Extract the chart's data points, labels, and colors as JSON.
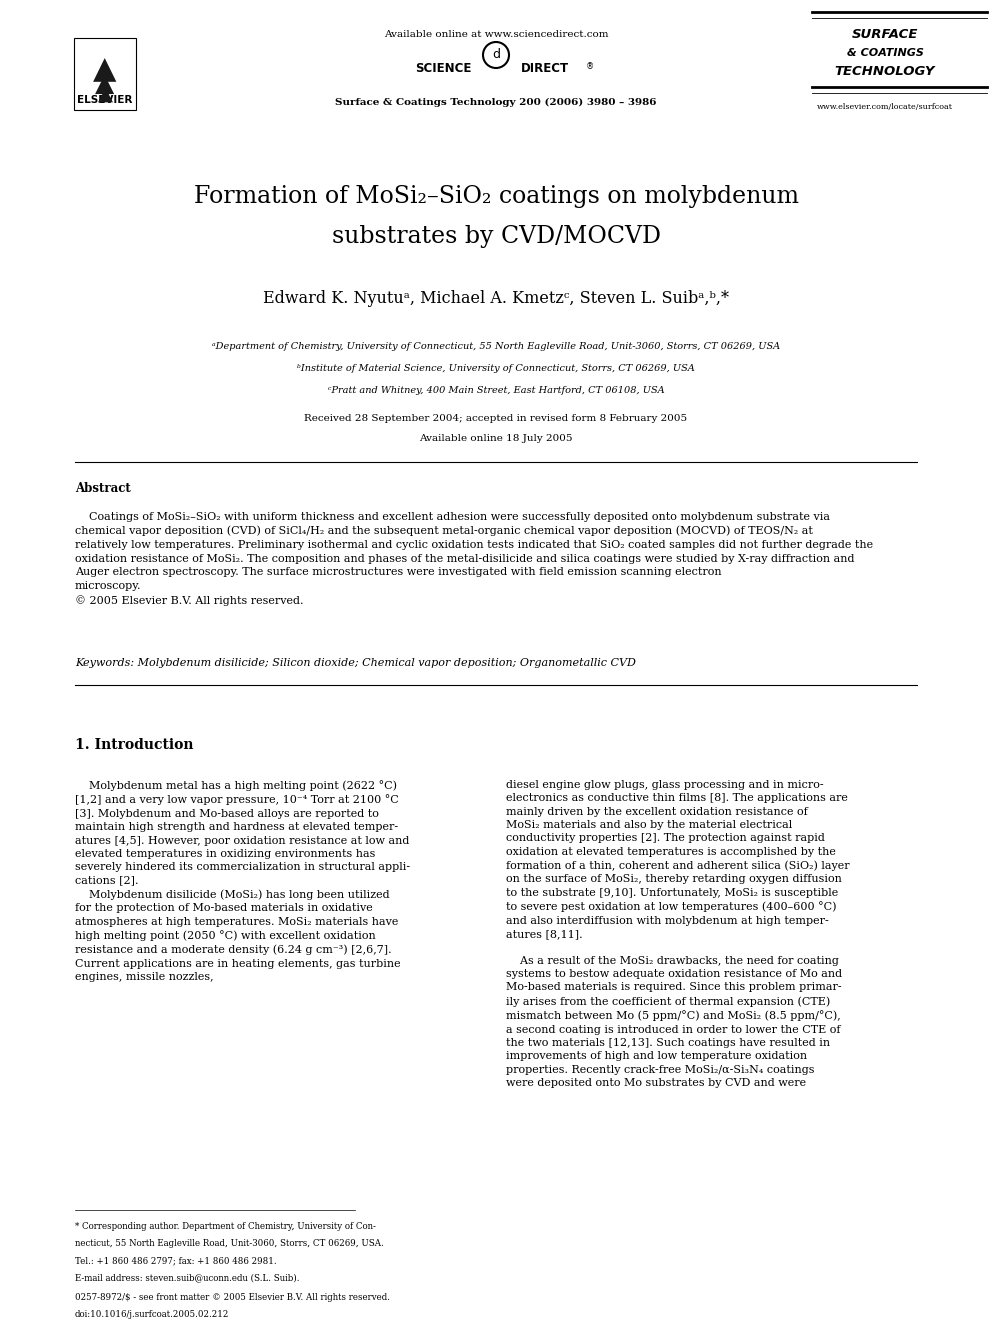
{
  "bg_color": "#ffffff",
  "title_line1": "Formation of MoSi₂–SiO₂ coatings on molybdenum",
  "title_line2": "substrates by CVD/MOCVD",
  "authors": "Edward K. Nyutuᵃ, Michael A. Kmetzᶜ, Steven L. Suibᵃ,ᵇ,*",
  "affil_a": "ᵃDepartment of Chemistry, University of Connecticut, 55 North Eagleville Road, Unit-3060, Storrs, CT 06269, USA",
  "affil_b": "ᵇInstitute of Material Science, University of Connecticut, Storrs, CT 06269, USA",
  "affil_c": "ᶜPratt and Whitney, 400 Main Street, East Hartford, CT 06108, USA",
  "received": "Received 28 September 2004; accepted in revised form 8 February 2005",
  "available": "Available online 18 July 2005",
  "journal_header": "Surface & Coatings Technology 200 (2006) 3980 – 3986",
  "available_online": "Available online at www.sciencedirect.com",
  "www": "www.elsevier.com/locate/surfcoat",
  "abstract_title": "Abstract",
  "abstract_text": "    Coatings of MoSi₂–SiO₂ with uniform thickness and excellent adhesion were successfully deposited onto molybdenum substrate via\nchemical vapor deposition (CVD) of SiCl₄/H₂ and the subsequent metal-organic chemical vapor deposition (MOCVD) of TEOS/N₂ at\nrelatively low temperatures. Preliminary isothermal and cyclic oxidation tests indicated that SiO₂ coated samples did not further degrade the\noxidation resistance of MoSi₂. The composition and phases of the metal-disilicide and silica coatings were studied by X-ray diffraction and\nAuger electron spectroscopy. The surface microstructures were investigated with field emission scanning electron\nmicroscopy.\n© 2005 Elsevier B.V. All rights reserved.",
  "keywords": "Keywords: Molybdenum disilicide; Silicon dioxide; Chemical vapor deposition; Organometallic CVD",
  "intro_title": "1. Introduction",
  "intro_left": "    Molybdenum metal has a high melting point (2622 °C)\n[1,2] and a very low vapor pressure, 10⁻⁴ Torr at 2100 °C\n[3]. Molybdenum and Mo-based alloys are reported to\nmaintain high strength and hardness at elevated temper-\natures [4,5]. However, poor oxidation resistance at low and\nelevated temperatures in oxidizing environments has\nseverely hindered its commercialization in structural appli-\ncations [2].\n    Molybdenum disilicide (MoSi₂) has long been utilized\nfor the protection of Mo-based materials in oxidative\natmospheres at high temperatures. MoSi₂ materials have\nhigh melting point (2050 °C) with excellent oxidation\nresistance and a moderate density (6.24 g cm⁻³) [2,6,7].\nCurrent applications are in heating elements, gas turbine\nengines, missile nozzles,",
  "intro_right": "diesel engine glow plugs, glass processing and in micro-\nelectronics as conductive thin films [8]. The applications are\nmainly driven by the excellent oxidation resistance of\nMoSi₂ materials and also by the material electrical\nconductivity properties [2]. The protection against rapid\noxidation at elevated temperatures is accomplished by the\nformation of a thin, coherent and adherent silica (SiO₂) layer\non the surface of MoSi₂, thereby retarding oxygen diffusion\nto the substrate [9,10]. Unfortunately, MoSi₂ is susceptible\nto severe pest oxidation at low temperatures (400–600 °C)\nand also interdiffusion with molybdenum at high temper-\natures [8,11].\n\n    As a result of the MoSi₂ drawbacks, the need for coating\nsystems to bestow adequate oxidation resistance of Mo and\nMo-based materials is required. Since this problem primar-\nily arises from the coefficient of thermal expansion (CTE)\nmismatch between Mo (5 ppm/°C) and MoSi₂ (8.5 ppm/°C),\na second coating is introduced in order to lower the CTE of\nthe two materials [12,13]. Such coatings have resulted in\nimprovements of high and low temperature oxidation\nproperties. Recently crack-free MoSi₂/α-Si₃N₄ coatings\nwere deposited onto Mo substrates by CVD and were",
  "footnote_1": "* Corresponding author. Department of Chemistry, University of Con-",
  "footnote_2": "necticut, 55 North Eagleville Road, Unit-3060, Storrs, CT 06269, USA.",
  "footnote_3": "Tel.: +1 860 486 2797; fax: +1 860 486 2981.",
  "footnote_4": "E-mail address: steven.suib@uconn.edu (S.L. Suib).",
  "footer_left": "0257-8972/$ - see front matter © 2005 Elsevier B.V. All rights reserved.",
  "footer_doi": "doi:10.1016/j.surfcoat.2005.02.212"
}
